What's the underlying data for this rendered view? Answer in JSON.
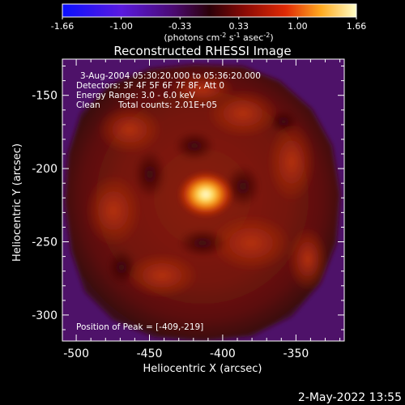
{
  "colorbar": {
    "ticks": [
      "-1.66",
      "-1.00",
      "-0.33",
      "0.33",
      "1.00",
      "1.66"
    ],
    "units": "(photons cm",
    "units_exp1": "-2",
    "units_mid": " s",
    "units_exp2": "-1",
    "units_end": " asec",
    "units_exp3": "-2",
    "units_close": ")"
  },
  "title": "Reconstructed RHESSI Image",
  "info": {
    "line1": "3-Aug-2004 05:30:20.000 to 05:36:20.000",
    "line2": "Detectors: 3F 4F 5F 6F 7F 8F, Att 0",
    "line3": "Energy Range: 3.0 - 6.0 keV",
    "line4_a": "Clean",
    "line4_b": "Total counts: 2.01E+05"
  },
  "peak_label": "Position of Peak = [-409,-219]",
  "x_axis": {
    "label": "Heliocentric X (arcsec)",
    "ticks": [
      "-500",
      "-450",
      "-400",
      "-350"
    ]
  },
  "y_axis": {
    "label": "Heliocentric Y (arcsec)",
    "ticks": [
      "-150",
      "-200",
      "-250",
      "-300"
    ]
  },
  "footer_date": "2-May-2022 13:55",
  "chart_data": {
    "type": "heatmap",
    "xlim": [
      -510,
      -317
    ],
    "ylim": [
      -318,
      -125
    ],
    "x_ticks": [
      -500,
      -450,
      -400,
      -350
    ],
    "y_ticks": [
      -150,
      -200,
      -250,
      -300
    ],
    "colorbar_range": [
      -1.66,
      1.66
    ],
    "peak": {
      "x": -409,
      "y": -219
    }
  }
}
